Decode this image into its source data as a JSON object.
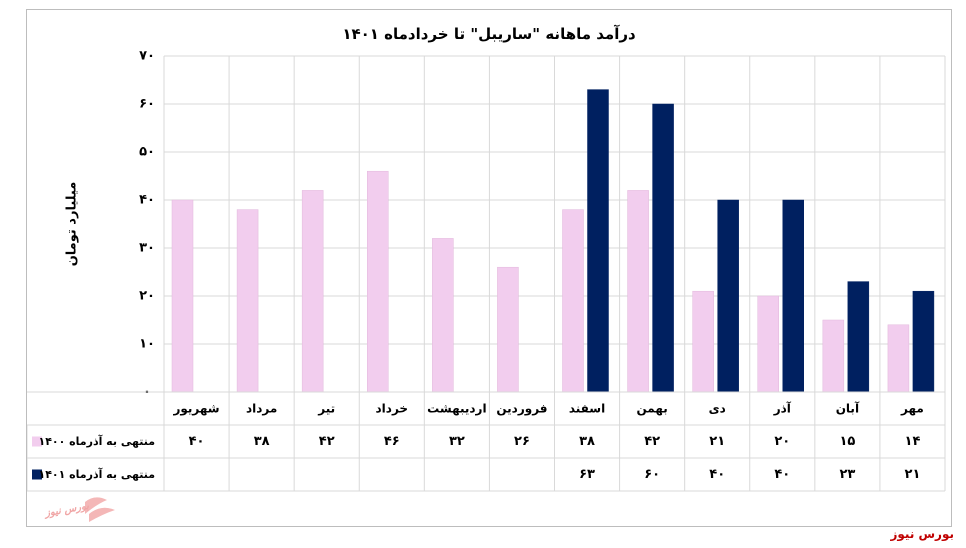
{
  "chart_data": {
    "type": "bar",
    "title": "درآمد ماهانه \"ساریبل\" تا خردادماه ۱۴۰۱",
    "ylabel": "میلیارد تومان",
    "xlabel": "",
    "ylim": [
      0,
      70
    ],
    "yticks": [
      0,
      10,
      20,
      30,
      40,
      50,
      60,
      70
    ],
    "ytick_labels": [
      "۰",
      "۱۰",
      "۲۰",
      "۳۰",
      "۴۰",
      "۵۰",
      "۶۰",
      "۷۰"
    ],
    "grid": true,
    "categories": [
      "شهریور",
      "مرداد",
      "تیر",
      "خرداد",
      "اردیبهشت",
      "فروردین",
      "اسفند",
      "بهمن",
      "دی",
      "آذر",
      "آبان",
      "مهر"
    ],
    "series": [
      {
        "name": "منتهی به آذرماه ۱۴۰۰",
        "color": "#f2cdee",
        "values": [
          40,
          38,
          42,
          46,
          32,
          26,
          38,
          42,
          21,
          20,
          15,
          14
        ],
        "value_labels": [
          "۴۰",
          "۳۸",
          "۴۲",
          "۴۶",
          "۳۲",
          "۲۶",
          "۳۸",
          "۴۲",
          "۲۱",
          "۲۰",
          "۱۵",
          "۱۴"
        ]
      },
      {
        "name": "منتهی به آذرماه ۱۴۰۱",
        "color": "#002060",
        "values": [
          null,
          null,
          null,
          null,
          null,
          null,
          63,
          60,
          40,
          40,
          23,
          21
        ],
        "value_labels": [
          "",
          "",
          "",
          "",
          "",
          "",
          "۶۳",
          "۶۰",
          "۴۰",
          "۴۰",
          "۲۳",
          "۲۱"
        ]
      }
    ],
    "data_table": true
  },
  "footer": {
    "source": "بورس نیوز",
    "watermark": "بورس نیوز",
    "accent_color": "#c00000"
  }
}
